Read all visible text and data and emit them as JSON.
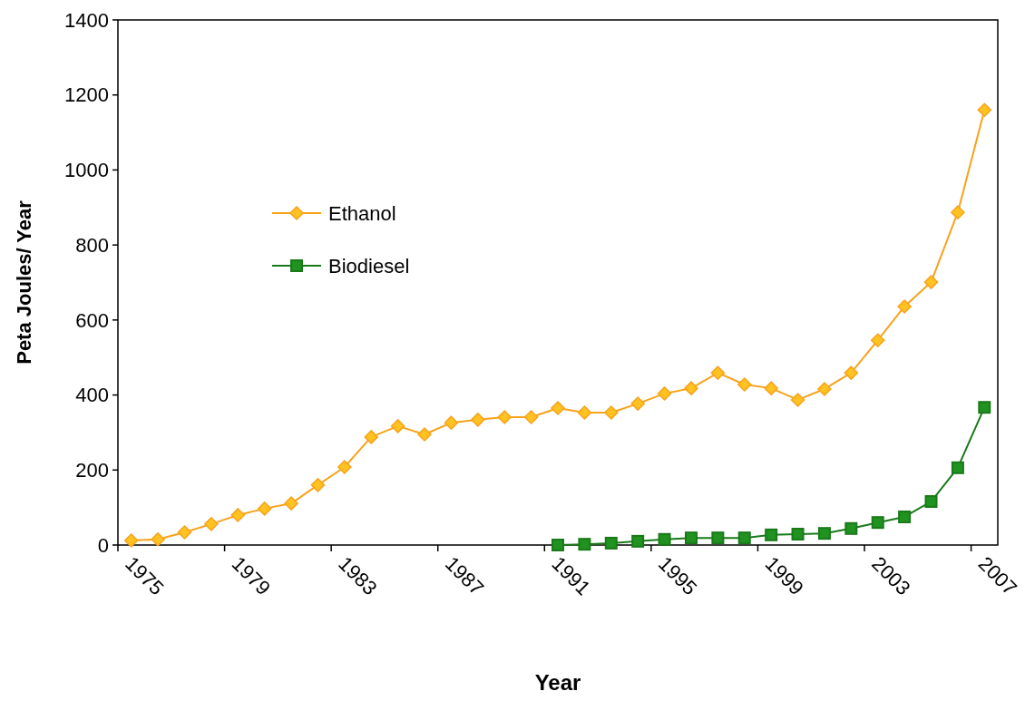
{
  "chart_data": {
    "type": "line",
    "xlabel": "Year",
    "ylabel": "Peta Joules/ Year",
    "categories": [
      "1975",
      null,
      null,
      null,
      "1979",
      null,
      null,
      null,
      "1983",
      null,
      null,
      null,
      "1987",
      null,
      null,
      null,
      "1991",
      null,
      null,
      null,
      "1995",
      null,
      null,
      null,
      "1999",
      null,
      null,
      null,
      "2003",
      null,
      null,
      null,
      "2007"
    ],
    "series": [
      {
        "name": "Ethanol",
        "color": "#f7a21b",
        "marker": "diamond",
        "values": [
          12,
          15,
          34,
          56,
          80,
          97,
          111,
          160,
          208,
          288,
          317,
          295,
          326,
          334,
          341,
          341,
          365,
          353,
          353,
          377,
          404,
          418,
          459,
          428,
          418,
          387,
          416,
          459,
          546,
          636,
          701,
          887,
          1160
        ]
      },
      {
        "name": "Biodiesel",
        "color": "#1a7a1a",
        "marker": "square",
        "values": [
          null,
          null,
          null,
          null,
          null,
          null,
          null,
          null,
          null,
          null,
          null,
          null,
          null,
          null,
          null,
          null,
          0,
          2,
          5,
          10,
          15,
          19,
          19,
          19,
          27,
          29,
          31,
          44,
          60,
          75,
          116,
          206,
          367
        ]
      }
    ],
    "ylim": [
      0,
      1400
    ],
    "yticks": [
      0,
      200,
      400,
      600,
      800,
      1000,
      1200,
      1400
    ],
    "grid": false,
    "legend": "left",
    "line_style": "solid"
  }
}
